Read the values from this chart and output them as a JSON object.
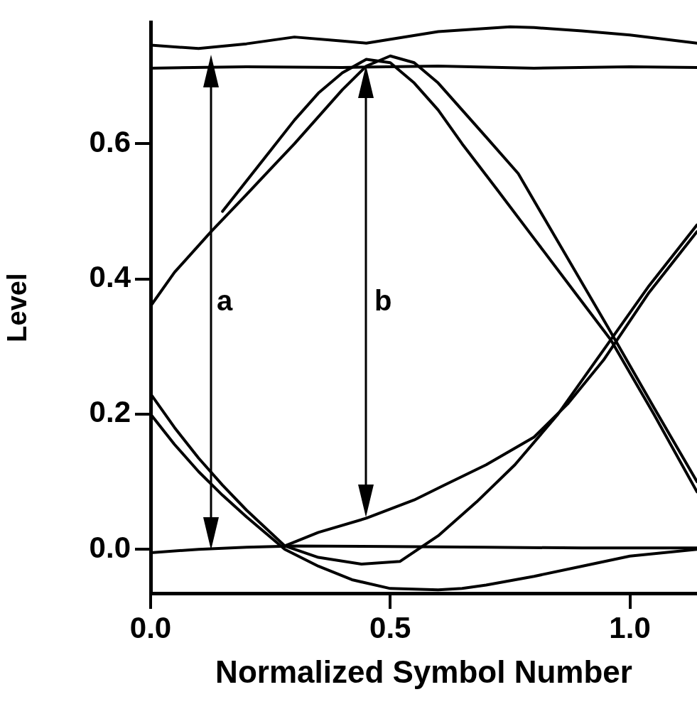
{
  "chart_data": {
    "type": "line",
    "xlabel": "Normalized Symbol Number",
    "ylabel": "Level",
    "xlim": [
      0,
      1.14
    ],
    "xticks": [
      {
        "value": 0,
        "label": "0.0"
      },
      {
        "value": 0.5,
        "label": "0.5"
      },
      {
        "value": 1,
        "label": "1.0"
      }
    ],
    "ylim": [
      -0.065,
      0.78
    ],
    "yticks": [
      {
        "value": 0,
        "label": "0.0"
      },
      {
        "value": 0.2,
        "label": "0.2"
      },
      {
        "value": 0.4,
        "label": "0.4"
      },
      {
        "value": 0.6,
        "label": "0.6"
      }
    ],
    "legend": false,
    "marker": "none",
    "line_style": "solid",
    "series": [
      {
        "color": "#000000",
        "x": [
          0,
          0.2,
          0.4,
          0.6,
          0.8,
          1.0,
          1.14
        ],
        "values": [
          0.712,
          0.714,
          0.713,
          0.715,
          0.712,
          0.714,
          0.713
        ]
      },
      {
        "color": "#000000",
        "x": [
          0,
          0.1,
          0.2,
          0.3,
          0.4,
          0.45,
          0.6,
          0.75,
          0.8,
          0.9,
          1.0,
          1.14
        ],
        "values": [
          0.746,
          0.741,
          0.748,
          0.758,
          0.752,
          0.749,
          0.766,
          0.773,
          0.772,
          0.767,
          0.761,
          0.749
        ]
      },
      {
        "color": "#000000",
        "x": [
          0,
          0.1,
          0.2,
          0.3,
          0.5,
          0.7,
          0.9,
          1.14
        ],
        "values": [
          -0.005,
          0,
          0.003,
          0.005,
          0.004,
          0.003,
          0.002,
          0.002
        ]
      },
      {
        "color": "#000000",
        "x": [
          0,
          0.05,
          0.126,
          0.2,
          0.26,
          0.3,
          0.35,
          0.4,
          0.45,
          0.5,
          0.55,
          0.6,
          0.65,
          0.7,
          0.767,
          0.85,
          0.953,
          1.05,
          1.14
        ],
        "values": [
          0.36,
          0.41,
          0.47,
          0.525,
          0.57,
          0.6,
          0.64,
          0.68,
          0.715,
          0.73,
          0.72,
          0.69,
          0.65,
          0.61,
          0.556,
          0.455,
          0.33,
          0.21,
          0.1
        ]
      },
      {
        "color": "#000000",
        "x": [
          0.15,
          0.2,
          0.25,
          0.3,
          0.35,
          0.4,
          0.45,
          0.5,
          0.55,
          0.6,
          0.65,
          0.72,
          0.8,
          0.88,
          0.96,
          1.05,
          1.14
        ],
        "values": [
          0.5,
          0.545,
          0.59,
          0.635,
          0.675,
          0.705,
          0.725,
          0.72,
          0.69,
          0.65,
          0.6,
          0.535,
          0.46,
          0.385,
          0.31,
          0.2,
          0.085
        ]
      },
      {
        "color": "#000000",
        "x": [
          0,
          0.05,
          0.1,
          0.15,
          0.2,
          0.28,
          0.35,
          0.42,
          0.5,
          0.6,
          0.65,
          0.7,
          0.8,
          0.9,
          1.0,
          1.14
        ],
        "values": [
          0.2,
          0.155,
          0.115,
          0.08,
          0.048,
          0,
          -0.025,
          -0.045,
          -0.058,
          -0.06,
          -0.058,
          -0.053,
          -0.04,
          -0.025,
          -0.01,
          0
        ]
      },
      {
        "color": "#000000",
        "x": [
          0,
          0.05,
          0.1,
          0.15,
          0.2,
          0.28,
          0.35,
          0.44,
          0.52,
          0.6,
          0.68,
          0.76,
          0.85,
          0.945,
          1.04,
          1.14
        ],
        "values": [
          0.23,
          0.18,
          0.135,
          0.095,
          0.058,
          0.005,
          -0.012,
          -0.022,
          -0.018,
          0.02,
          0.07,
          0.125,
          0.2,
          0.295,
          0.39,
          0.48
        ]
      },
      {
        "color": "#000000",
        "x": [
          0.28,
          0.35,
          0.45,
          0.55,
          0.61,
          0.7,
          0.8,
          0.87,
          0.945,
          1.04,
          1.14
        ],
        "values": [
          0.005,
          0.025,
          0.046,
          0.073,
          0.094,
          0.125,
          0.166,
          0.215,
          0.28,
          0.38,
          0.47
        ]
      }
    ],
    "annotations": [
      "a",
      "b"
    ]
  }
}
